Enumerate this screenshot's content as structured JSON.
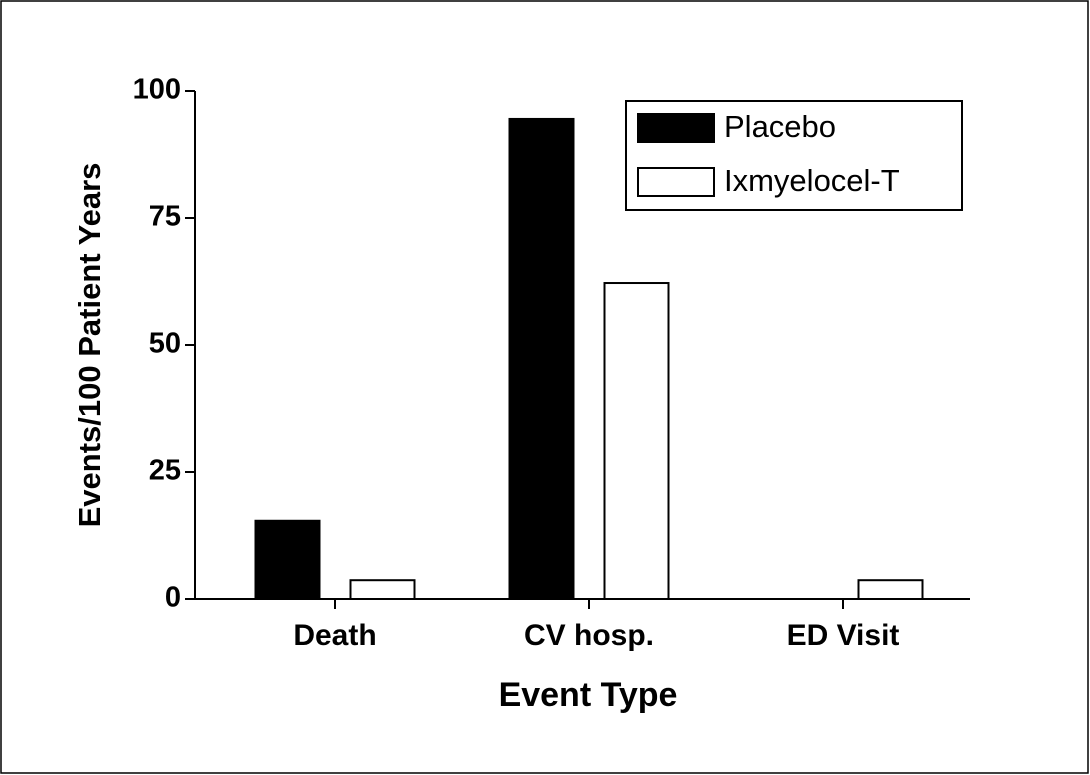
{
  "chart_data": {
    "type": "bar",
    "categories": [
      "Death",
      "CV hosp.",
      "ED Visit"
    ],
    "series": [
      {
        "name": "Placebo",
        "color": "#000000",
        "values": [
          15.4,
          94.5,
          0
        ]
      },
      {
        "name": "Ixmyelocel-T",
        "color": "#ffffff",
        "values": [
          3.7,
          62.2,
          3.7
        ]
      }
    ],
    "ylim": [
      0,
      100
    ],
    "yticks": [
      0,
      25,
      50,
      75,
      100
    ],
    "xlabel": "Event Type",
    "ylabel": "Events/100 Patient Years",
    "legend": "upper right",
    "grid": false
  }
}
